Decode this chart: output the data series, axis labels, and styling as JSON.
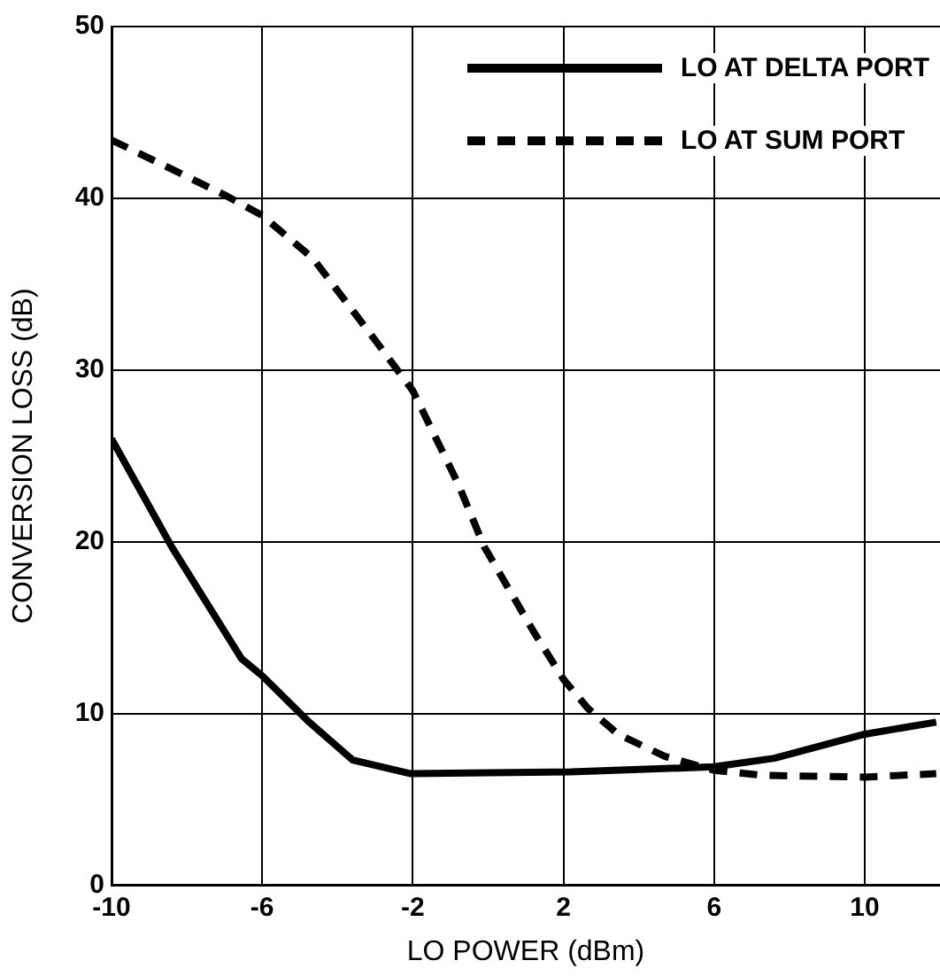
{
  "chart_data": {
    "type": "line",
    "xlabel": "LO POWER (dBm)",
    "ylabel": "CONVERSION LOSS (dB)",
    "xlim": [
      -10,
      12
    ],
    "xticks": [
      -10,
      -6,
      -2,
      2,
      6,
      10
    ],
    "ylim": [
      0,
      50
    ],
    "yticks": [
      0,
      10,
      20,
      30,
      40,
      50
    ],
    "grid": true,
    "legend": "top right",
    "marker": "none",
    "series": [
      {
        "name": "LO AT DELTA PORT",
        "color": "#000000",
        "line_style": "solid",
        "x": [
          -10,
          -8.4,
          -6.55,
          -6,
          -4.8,
          -3.6,
          -2.05,
          2.2,
          6,
          7.6,
          10,
          11.9
        ],
        "values": [
          26,
          19.7,
          13.2,
          12.2,
          9.6,
          7.3,
          6.5,
          6.6,
          6.9,
          7.4,
          8.8,
          9.5
        ]
      },
      {
        "name": "LO AT SUM PORT",
        "color": "#000000",
        "line_style": "dashed",
        "x": [
          -10,
          -7,
          -6,
          -4.65,
          -2.95,
          -2,
          -0.8,
          -0.1,
          1.2,
          2,
          2.65,
          3.45,
          4.7,
          6,
          7.3,
          10,
          11.9
        ],
        "values": [
          43.4,
          40.2,
          39,
          36.5,
          31.6,
          28.8,
          23.4,
          19.7,
          14.8,
          12,
          10.3,
          8.8,
          7.5,
          6.7,
          6.4,
          6.3,
          6.5
        ]
      }
    ]
  }
}
